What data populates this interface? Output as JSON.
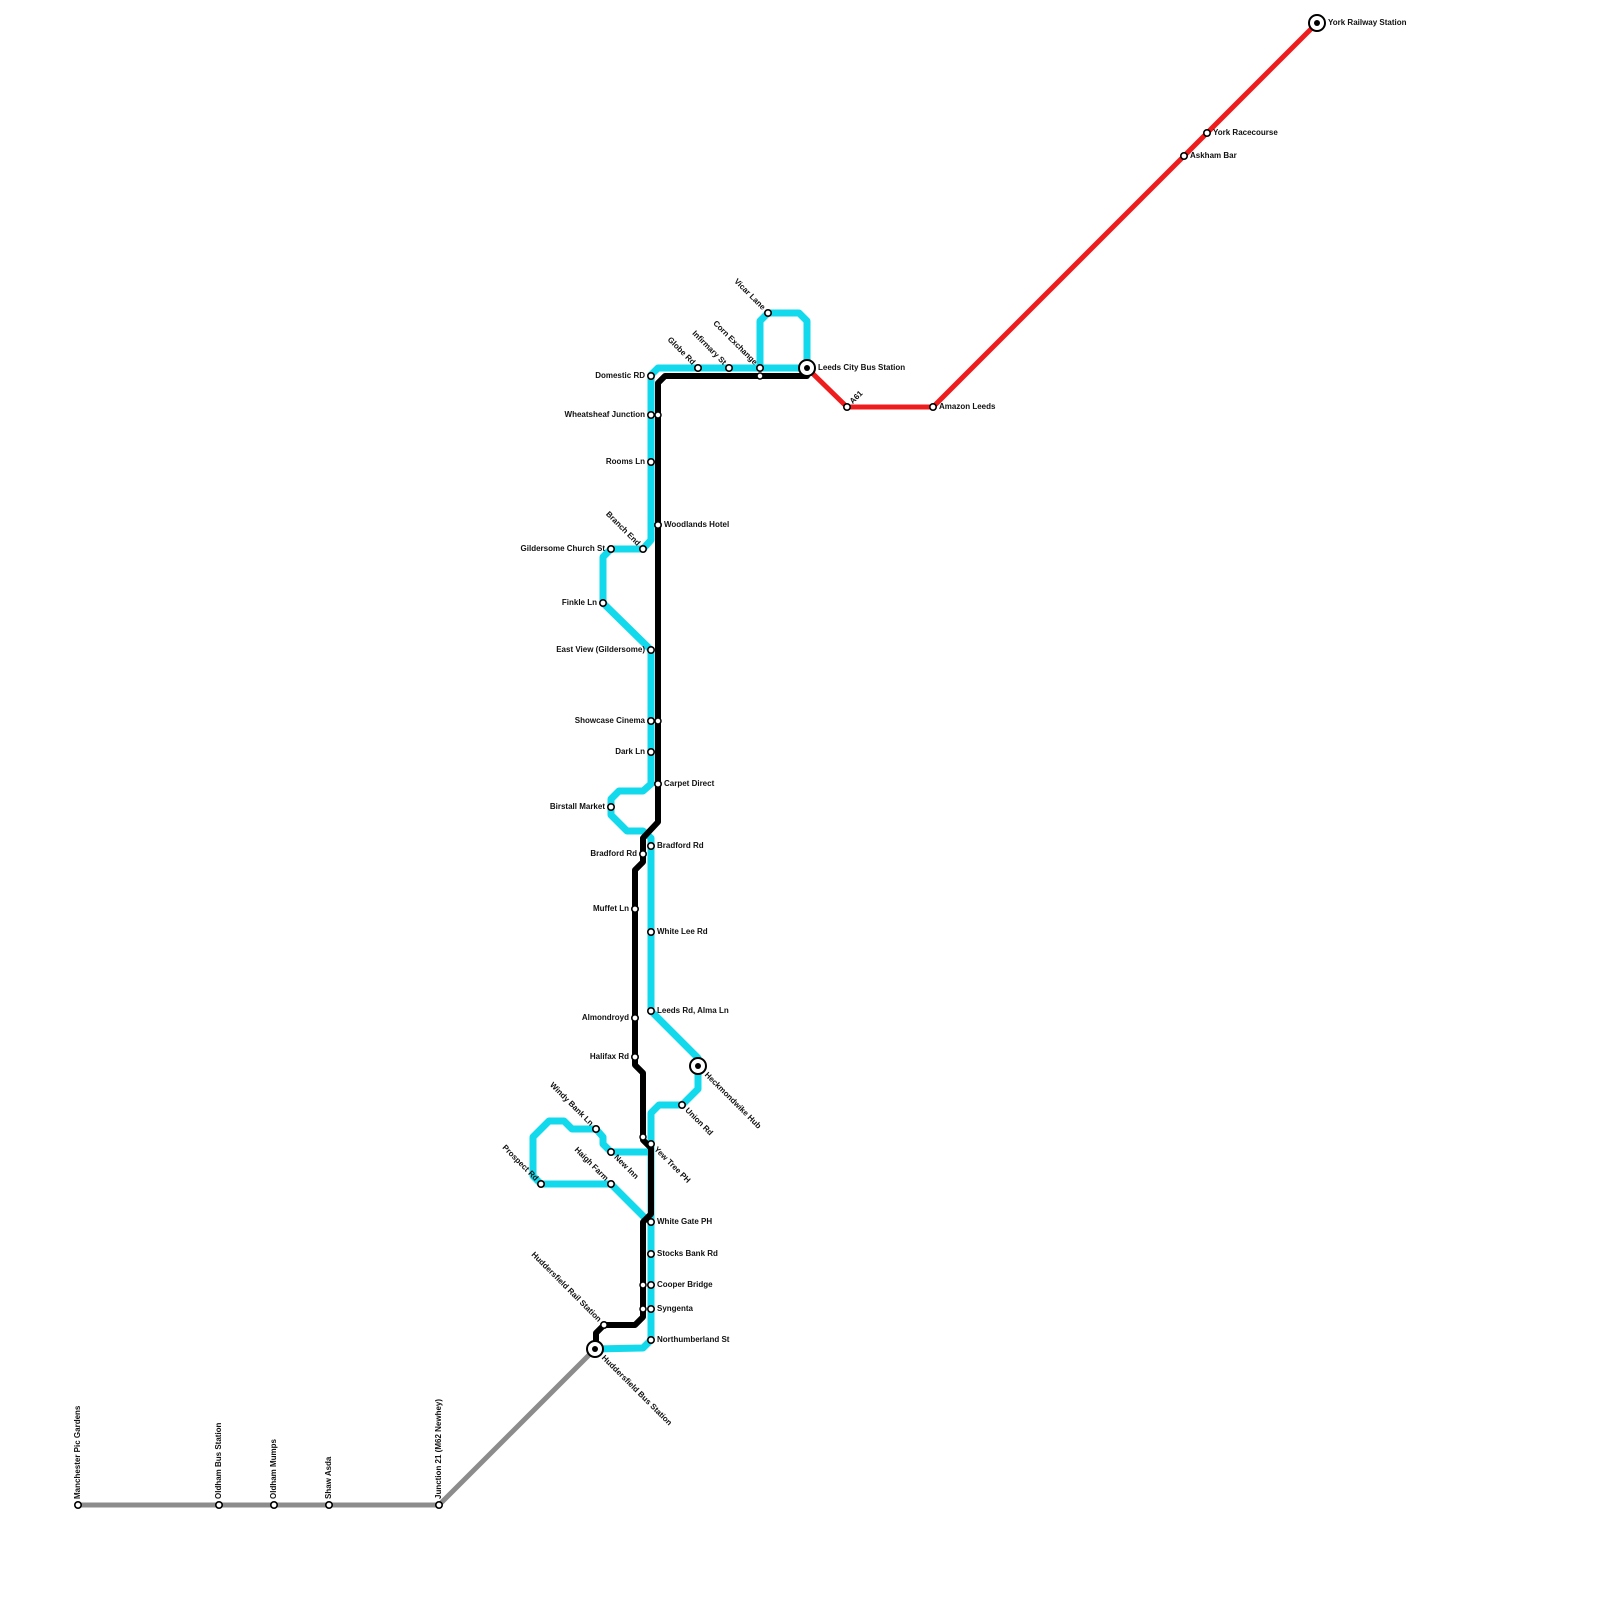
{
  "stations": [
    {
      "label": "Manchester Pic Gardens"
    },
    {
      "label": "Oldham Bus Station"
    },
    {
      "label": "Oldham Mumps"
    },
    {
      "label": "Shaw Asda"
    },
    {
      "label": "Junction 21 (M62 Newhey)"
    },
    {
      "label": "Huddersfield Bus Station"
    },
    {
      "label": "Leeds City Bus Station"
    },
    {
      "label": "A61"
    },
    {
      "label": "Amazon Leeds"
    },
    {
      "label": "Askham Bar"
    },
    {
      "label": "York Racecourse"
    },
    {
      "label": "York Railway Station"
    },
    {
      "label": "Domestic RD"
    },
    {
      "label": "Wheatsheaf Junction"
    },
    {
      "label": "Rooms Ln"
    },
    {
      "label": "Woodlands Hotel"
    },
    {
      "label": "Branch End"
    },
    {
      "label": "Gildersome Church St"
    },
    {
      "label": "Finkle Ln"
    },
    {
      "label": "East View (Gildersome)"
    },
    {
      "label": "Showcase Cinema"
    },
    {
      "label": "Dark Ln"
    },
    {
      "label": "Carpet Direct"
    },
    {
      "label": "Birstall Market"
    },
    {
      "label": "Bradford Rd"
    },
    {
      "label": "Bradford Rd"
    },
    {
      "label": "Muffet Ln"
    },
    {
      "label": "White Lee Rd"
    },
    {
      "label": "Almondroyd"
    },
    {
      "label": "Leeds Rd, Alma Ln"
    },
    {
      "label": "Halifax Rd"
    },
    {
      "label": "Heckmondwike Hub"
    },
    {
      "label": "Union Rd"
    },
    {
      "label": "Yew Tree PH"
    },
    {
      "label": "Windy Bank Ln"
    },
    {
      "label": "New Inn"
    },
    {
      "label": "Haigh Farm"
    },
    {
      "label": "Prospect Rd"
    },
    {
      "label": "White Gate PH"
    },
    {
      "label": "Stocks Bank Rd"
    },
    {
      "label": "Cooper Bridge"
    },
    {
      "label": "Syngenta"
    },
    {
      "label": "Northumberland St"
    },
    {
      "label": "Huddersfield Rail Station"
    },
    {
      "label": "Globe Rd"
    },
    {
      "label": "Infirmary St"
    },
    {
      "label": "Corn Exchange"
    },
    {
      "label": "Vicar Lane"
    }
  ]
}
